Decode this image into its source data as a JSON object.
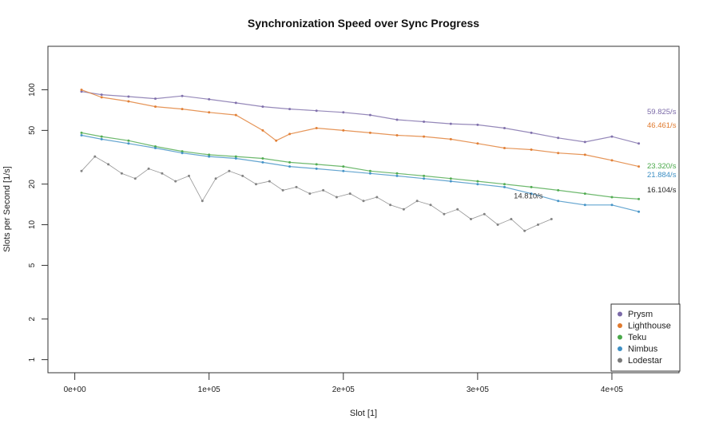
{
  "chart_data": {
    "type": "scatter",
    "title": "Synchronization Speed over Sync Progress",
    "xlabel": "Slot [1]",
    "ylabel": "Slots per Second [1/s]",
    "xlim": [
      -20000,
      450000
    ],
    "ylim": [
      0.8,
      210
    ],
    "yscale": "log",
    "x_ticks": [
      0,
      100000,
      200000,
      300000,
      400000
    ],
    "x_tick_labels": [
      "0e+00",
      "1e+05",
      "2e+05",
      "3e+05",
      "4e+05"
    ],
    "y_ticks": [
      1,
      2,
      5,
      10,
      20,
      50,
      100
    ],
    "y_tick_labels": [
      "1",
      "2",
      "5",
      "10",
      "20",
      "50",
      "100"
    ],
    "grid": false,
    "legend_position": "bottom-right",
    "series": [
      {
        "name": "Prysm",
        "color": "#7b6aa8",
        "end_label": "59.825/s",
        "x": [
          5000,
          20000,
          40000,
          60000,
          80000,
          100000,
          120000,
          140000,
          160000,
          180000,
          200000,
          220000,
          240000,
          260000,
          280000,
          300000,
          320000,
          340000,
          360000,
          380000,
          400000,
          420000
        ],
        "y": [
          97,
          92,
          89,
          86,
          90,
          85,
          80,
          75,
          72,
          70,
          68,
          65,
          60,
          58,
          56,
          55,
          52,
          48,
          44,
          41,
          45,
          40
        ]
      },
      {
        "name": "Lighthouse",
        "color": "#e07a2e",
        "end_label": "46.461/s",
        "x": [
          5000,
          20000,
          40000,
          60000,
          80000,
          100000,
          120000,
          140000,
          150000,
          160000,
          180000,
          200000,
          220000,
          240000,
          260000,
          280000,
          300000,
          320000,
          340000,
          360000,
          380000,
          400000,
          420000
        ],
        "y": [
          100,
          88,
          82,
          75,
          72,
          68,
          65,
          50,
          42,
          47,
          52,
          50,
          48,
          46,
          45,
          43,
          40,
          37,
          36,
          34,
          33,
          30,
          27
        ]
      },
      {
        "name": "Teku",
        "color": "#4aa84a",
        "end_label": "23.320/s",
        "x": [
          5000,
          20000,
          40000,
          60000,
          80000,
          100000,
          120000,
          140000,
          160000,
          180000,
          200000,
          220000,
          240000,
          260000,
          280000,
          300000,
          320000,
          340000,
          360000,
          380000,
          400000,
          420000
        ],
        "y": [
          48,
          45,
          42,
          38,
          35,
          33,
          32,
          31,
          29,
          28,
          27,
          25,
          24,
          23,
          22,
          21,
          20,
          19,
          18,
          17,
          16,
          15.5
        ]
      },
      {
        "name": "Nimbus",
        "color": "#3d8fc4",
        "end_label": "21.884/s",
        "x": [
          5000,
          20000,
          40000,
          60000,
          80000,
          100000,
          120000,
          140000,
          160000,
          180000,
          200000,
          220000,
          240000,
          260000,
          280000,
          300000,
          320000,
          340000,
          360000,
          380000,
          400000,
          420000
        ],
        "y": [
          46,
          43,
          40,
          37,
          34,
          32,
          31,
          29,
          27,
          26,
          25,
          24,
          23,
          22,
          21,
          20,
          19,
          17,
          15,
          14,
          14,
          12.5
        ]
      },
      {
        "name": "Lodestar",
        "color": "#7a7a7a",
        "end_label": "16.104/s",
        "x": [
          5000,
          15000,
          25000,
          35000,
          45000,
          55000,
          65000,
          75000,
          85000,
          95000,
          105000,
          115000,
          125000,
          135000,
          145000,
          155000,
          165000,
          175000,
          185000,
          195000,
          205000,
          215000,
          225000,
          235000,
          245000,
          255000,
          265000,
          275000,
          285000,
          295000,
          305000,
          315000,
          325000,
          335000,
          345000,
          355000
        ],
        "y": [
          25,
          32,
          28,
          24,
          22,
          26,
          24,
          21,
          23,
          15,
          22,
          25,
          23,
          20,
          21,
          18,
          19,
          17,
          18,
          16,
          17,
          15,
          16,
          14,
          13,
          15,
          14,
          12,
          13,
          11,
          12,
          10,
          11,
          9,
          10,
          11
        ]
      }
    ],
    "annotations": [
      {
        "text": "14.810/s",
        "x": 340000,
        "y": 14.81,
        "color": "#333333"
      }
    ]
  }
}
